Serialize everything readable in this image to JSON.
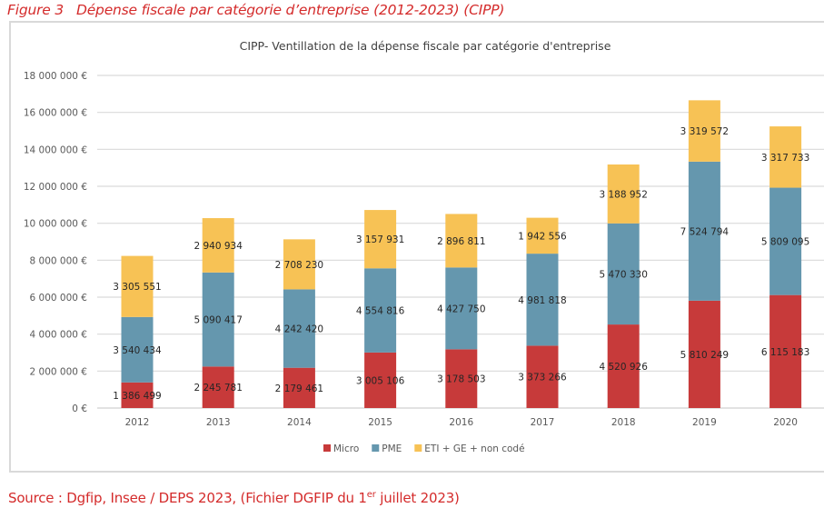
{
  "figure": {
    "number": "Figure 3",
    "title": "Dépense fiscale par catégorie d’entreprise (2012-2023) (CIPP)"
  },
  "source": {
    "prefix": "Source :  Dgfip, Insee / DEPS 2023, (Fichier DGFIP du 1",
    "sup": "er",
    "suffix": " juillet 2023)"
  },
  "colors": {
    "Micro": "#c73a3a",
    "PME": "#6597ae",
    "ETI + GE + non codé": "#f7c255",
    "grid": "#d9d9d9",
    "text": "#404040"
  },
  "chart_data": {
    "type": "bar",
    "stacked": true,
    "title": "CIPP- Ventillation de la dépense fiscale par catégorie d'entreprise",
    "xlabel": "",
    "ylabel": "",
    "categories": [
      "2012",
      "2013",
      "2014",
      "2015",
      "2016",
      "2017",
      "2018",
      "2019",
      "2020"
    ],
    "series": [
      {
        "name": "Micro",
        "values": [
          1386499,
          2245781,
          2179461,
          3005106,
          3178503,
          3373266,
          4520926,
          5810249,
          6115183
        ],
        "labels": [
          "1 386 499",
          "2 245 781",
          "2 179 461",
          "3 005 106",
          "3 178 503",
          "3 373 266",
          "4 520 926",
          "5 810 249",
          "6 115 183"
        ]
      },
      {
        "name": "PME",
        "values": [
          3540434,
          5090417,
          4242420,
          4554816,
          4427750,
          4981818,
          5470330,
          7524794,
          5809095
        ],
        "labels": [
          "3 540 434",
          "5 090 417",
          "4 242 420",
          "4 554 816",
          "4 427 750",
          "4 981 818",
          "5 470 330",
          "7 524 794",
          "5 809 095"
        ]
      },
      {
        "name": "ETI + GE + non codé",
        "values": [
          3305551,
          2940934,
          2708230,
          3157931,
          2896811,
          1942556,
          3188952,
          3319572,
          3317733
        ],
        "labels": [
          "3 305 551",
          "2 940 934",
          "2 708 230",
          "3 157 931",
          "2 896 811",
          "1 942 556",
          "3 188 952",
          "3 319 572",
          "3 317 733"
        ]
      }
    ],
    "ylim": [
      0,
      18000000
    ],
    "yticks": [
      0,
      2000000,
      4000000,
      6000000,
      8000000,
      10000000,
      12000000,
      14000000,
      16000000,
      18000000
    ],
    "ytick_labels": [
      "0 €",
      "2 000 000 €",
      "4 000 000 €",
      "6 000 000 €",
      "8 000 000 €",
      "10 000 000 €",
      "12 000 000 €",
      "14 000 000 €",
      "16 000 000 €",
      "18 000 000 €"
    ],
    "grid": true,
    "legend": {
      "position": "bottom",
      "entries": [
        "Micro",
        "PME",
        "ETI + GE + non codé"
      ]
    }
  }
}
